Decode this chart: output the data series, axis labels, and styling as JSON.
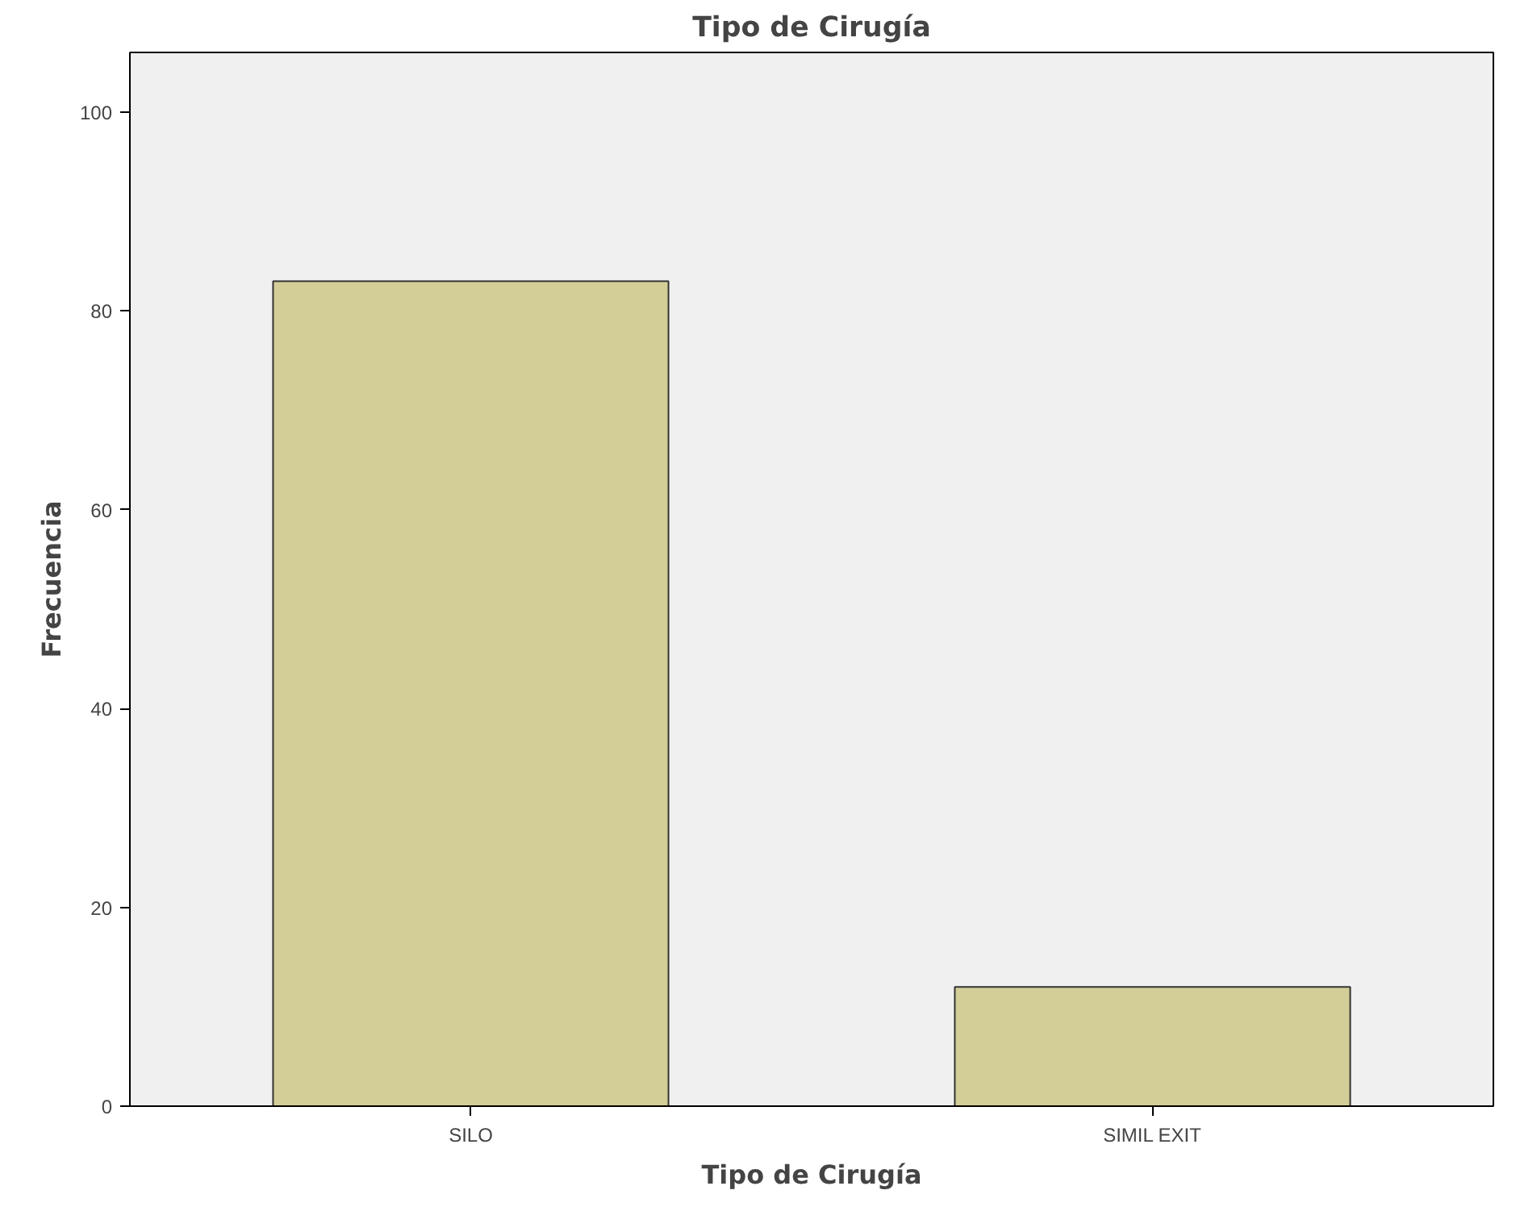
{
  "chart_data": {
    "type": "bar",
    "title": "Tipo de Cirugía",
    "xlabel": "Tipo de Cirugía",
    "ylabel": "Frecuencia",
    "categories": [
      "SILO",
      "SIMIL EXIT"
    ],
    "values": [
      83,
      12
    ],
    "color": "#d3ce97",
    "ylim": [
      0,
      106
    ],
    "yticks": [
      0,
      20,
      40,
      60,
      80,
      100
    ],
    "grid": false
  }
}
